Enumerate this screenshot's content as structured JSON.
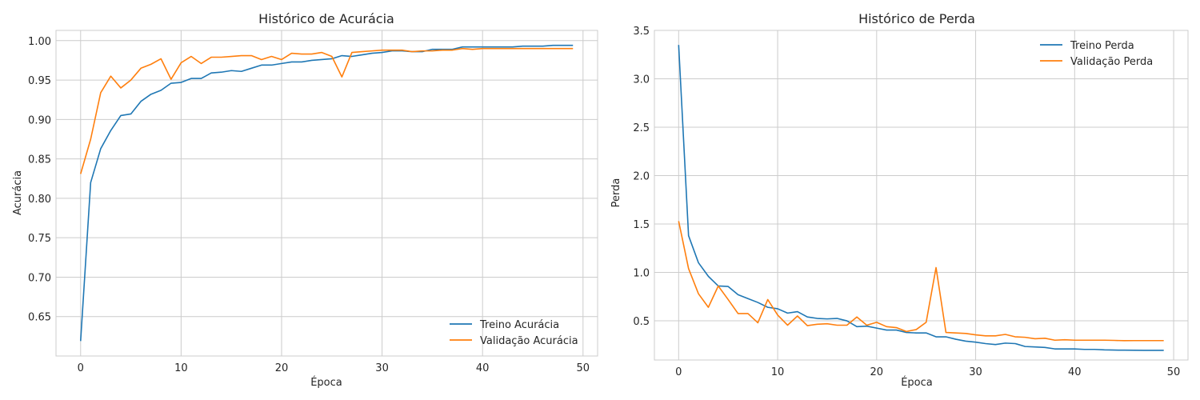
{
  "chart_data": [
    {
      "type": "line",
      "title": "Histórico de Acurácia",
      "xlabel": "Época",
      "ylabel": "Acurácia",
      "xlim": [
        -2.45,
        51.45
      ],
      "ylim": [
        0.6,
        1.013
      ],
      "xticks": [
        0,
        10,
        20,
        30,
        40,
        50
      ],
      "yticks": [
        0.65,
        0.7,
        0.75,
        0.8,
        0.85,
        0.9,
        0.95,
        1.0
      ],
      "ytick_labels": [
        "0.65",
        "0.70",
        "0.75",
        "0.80",
        "0.85",
        "0.90",
        "0.95",
        "1.00"
      ],
      "grid": true,
      "legend_position": "lower-right",
      "x": [
        0,
        1,
        2,
        3,
        4,
        5,
        6,
        7,
        8,
        9,
        10,
        11,
        12,
        13,
        14,
        15,
        16,
        17,
        18,
        19,
        20,
        21,
        22,
        23,
        24,
        25,
        26,
        27,
        28,
        29,
        30,
        31,
        32,
        33,
        34,
        35,
        36,
        37,
        38,
        39,
        40,
        41,
        42,
        43,
        44,
        45,
        46,
        47,
        48,
        49
      ],
      "series": [
        {
          "name": "Treino Acurácia",
          "color": "#1f77b4",
          "values": [
            0.619,
            0.82,
            0.863,
            0.886,
            0.905,
            0.907,
            0.923,
            0.932,
            0.937,
            0.946,
            0.947,
            0.952,
            0.952,
            0.959,
            0.96,
            0.962,
            0.961,
            0.965,
            0.969,
            0.969,
            0.971,
            0.973,
            0.973,
            0.975,
            0.976,
            0.977,
            0.981,
            0.98,
            0.982,
            0.984,
            0.985,
            0.987,
            0.987,
            0.986,
            0.986,
            0.989,
            0.989,
            0.989,
            0.992,
            0.992,
            0.992,
            0.992,
            0.992,
            0.992,
            0.993,
            0.993,
            0.993,
            0.994,
            0.994,
            0.994
          ]
        },
        {
          "name": "Validação Acurácia",
          "color": "#ff7f0e",
          "values": [
            0.831,
            0.875,
            0.934,
            0.955,
            0.94,
            0.95,
            0.965,
            0.97,
            0.977,
            0.951,
            0.972,
            0.98,
            0.971,
            0.979,
            0.979,
            0.98,
            0.981,
            0.981,
            0.976,
            0.98,
            0.976,
            0.984,
            0.983,
            0.983,
            0.985,
            0.98,
            0.954,
            0.985,
            0.986,
            0.987,
            0.988,
            0.988,
            0.988,
            0.986,
            0.987,
            0.987,
            0.988,
            0.988,
            0.99,
            0.989,
            0.99,
            0.99,
            0.99,
            0.99,
            0.99,
            0.99,
            0.99,
            0.99,
            0.99,
            0.99
          ]
        }
      ]
    },
    {
      "type": "line",
      "title": "Histórico de Perda",
      "xlabel": "Época",
      "ylabel": "Perda",
      "xlim": [
        -2.45,
        51.45
      ],
      "ylim": [
        0.0955,
        3.5
      ],
      "xticks": [
        0,
        10,
        20,
        30,
        40,
        50
      ],
      "yticks": [
        0.5,
        1.0,
        1.5,
        2.0,
        2.5,
        3.0,
        3.5
      ],
      "ytick_labels": [
        "0.5",
        "1.0",
        "1.5",
        "2.0",
        "2.5",
        "3.0",
        "3.5"
      ],
      "grid": true,
      "legend_position": "upper-right",
      "x": [
        0,
        1,
        2,
        3,
        4,
        5,
        6,
        7,
        8,
        9,
        10,
        11,
        12,
        13,
        14,
        15,
        16,
        17,
        18,
        19,
        20,
        21,
        22,
        23,
        24,
        25,
        26,
        27,
        28,
        29,
        30,
        31,
        32,
        33,
        34,
        35,
        36,
        37,
        38,
        39,
        40,
        41,
        42,
        43,
        44,
        45,
        46,
        47,
        48,
        49
      ],
      "series": [
        {
          "name": "Treino Perda",
          "color": "#1f77b4",
          "values": [
            3.35,
            1.38,
            1.1,
            0.96,
            0.86,
            0.855,
            0.77,
            0.73,
            0.69,
            0.64,
            0.625,
            0.58,
            0.595,
            0.54,
            0.525,
            0.52,
            0.525,
            0.5,
            0.44,
            0.445,
            0.425,
            0.405,
            0.405,
            0.38,
            0.375,
            0.375,
            0.335,
            0.335,
            0.31,
            0.29,
            0.28,
            0.265,
            0.255,
            0.27,
            0.265,
            0.235,
            0.23,
            0.225,
            0.21,
            0.21,
            0.21,
            0.205,
            0.205,
            0.2,
            0.198,
            0.197,
            0.196,
            0.195,
            0.195,
            0.195
          ]
        },
        {
          "name": "Validação Perda",
          "color": "#ff7f0e",
          "values": [
            1.53,
            1.04,
            0.78,
            0.64,
            0.86,
            0.72,
            0.575,
            0.575,
            0.48,
            0.72,
            0.56,
            0.455,
            0.55,
            0.45,
            0.465,
            0.47,
            0.455,
            0.455,
            0.54,
            0.455,
            0.485,
            0.44,
            0.43,
            0.39,
            0.41,
            0.485,
            1.05,
            0.38,
            0.375,
            0.37,
            0.355,
            0.345,
            0.345,
            0.36,
            0.335,
            0.33,
            0.315,
            0.32,
            0.3,
            0.305,
            0.3,
            0.3,
            0.3,
            0.3,
            0.298,
            0.295,
            0.296,
            0.296,
            0.296,
            0.296
          ]
        }
      ]
    }
  ]
}
